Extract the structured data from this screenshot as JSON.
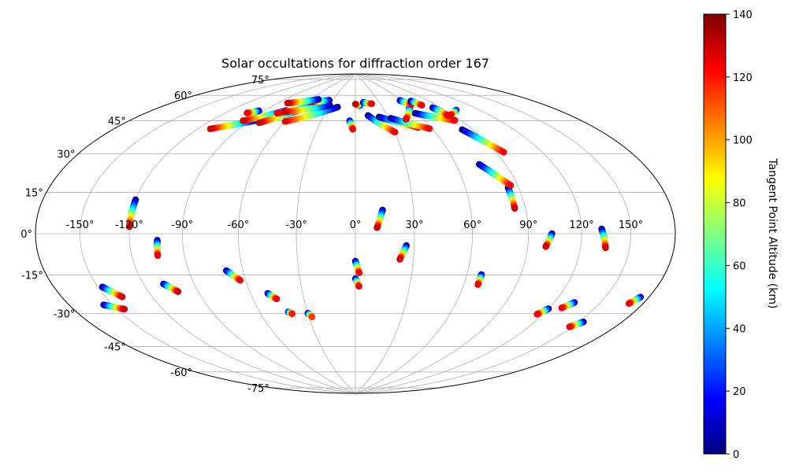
{
  "chart_data": {
    "type": "scatter",
    "projection": "hammer",
    "title": "Solar occultations for diffraction order 167",
    "colorbar": {
      "label": "Tangent Point Altitude (km)",
      "range": [
        0,
        140
      ],
      "ticks": [
        "0",
        "20",
        "40",
        "60",
        "80",
        "100",
        "120",
        "140"
      ],
      "colormap": "jet"
    },
    "lon_tick_labels": [
      "-150°",
      "-120°",
      "-90°",
      "-60°",
      "-30°",
      "0°",
      "30°",
      "60°",
      "90°",
      "120°",
      "150°"
    ],
    "lat_tick_labels": [
      "-75°",
      "-60°",
      "-45°",
      "-30°",
      "-15°",
      "0°",
      "15°",
      "30°",
      "45°",
      "60°",
      "75°"
    ],
    "grid": true,
    "occultations": [
      {
        "start": [
          -120,
          15
        ],
        "end": [
          -120,
          3
        ],
        "alt_start": 0,
        "alt_end": 130
      },
      {
        "start": [
          -104,
          -3
        ],
        "end": [
          -105,
          -10
        ],
        "alt_start": 0,
        "alt_end": 125
      },
      {
        "start": [
          -147,
          -22
        ],
        "end": [
          -139,
          -27
        ],
        "alt_start": 0,
        "alt_end": 130
      },
      {
        "start": [
          -108,
          -23
        ],
        "end": [
          -102,
          -27
        ],
        "alt_start": 0,
        "alt_end": 130
      },
      {
        "start": [
          -156,
          -29
        ],
        "end": [
          -145,
          -32
        ],
        "alt_start": 0,
        "alt_end": 130
      },
      {
        "start": [
          -69,
          -18
        ],
        "end": [
          -63,
          -23
        ],
        "alt_start": 0,
        "alt_end": 125
      },
      {
        "start": [
          -50,
          -30
        ],
        "end": [
          -46,
          -33
        ],
        "alt_start": 0,
        "alt_end": 125
      },
      {
        "start": [
          -42,
          -40
        ],
        "end": [
          -40,
          -41
        ],
        "alt_start": 0,
        "alt_end": 120
      },
      {
        "start": [
          -30,
          -41
        ],
        "end": [
          -28,
          -43
        ],
        "alt_start": 0,
        "alt_end": 115
      },
      {
        "start": [
          0,
          -14
        ],
        "end": [
          2,
          -20
        ],
        "alt_start": 0,
        "alt_end": 125
      },
      {
        "start": [
          0,
          -23
        ],
        "end": [
          2,
          -27
        ],
        "alt_start": 0,
        "alt_end": 125
      },
      {
        "start": [
          14,
          12
        ],
        "end": [
          11,
          3
        ],
        "alt_start": 0,
        "alt_end": 130
      },
      {
        "start": [
          26,
          -6
        ],
        "end": [
          23,
          -13
        ],
        "alt_start": 0,
        "alt_end": 130
      },
      {
        "start": [
          68,
          -20
        ],
        "end": [
          68,
          -25
        ],
        "alt_start": 0,
        "alt_end": 125
      },
      {
        "start": [
          84,
          22
        ],
        "end": [
          84,
          12
        ],
        "alt_start": 0,
        "alt_end": 130
      },
      {
        "start": [
          74,
          34
        ],
        "end": [
          86,
          23
        ],
        "alt_start": 0,
        "alt_end": 125
      },
      {
        "start": [
          82,
          52
        ],
        "end": [
          95,
          39
        ],
        "alt_start": 0,
        "alt_end": 125
      },
      {
        "start": [
          103,
          0
        ],
        "end": [
          100,
          -6
        ],
        "alt_start": 0,
        "alt_end": 130
      },
      {
        "start": [
          132,
          2
        ],
        "end": [
          135,
          -6
        ],
        "alt_start": 0,
        "alt_end": 130
      },
      {
        "start": [
          120,
          -34
        ],
        "end": [
          116,
          -37
        ],
        "alt_start": 0,
        "alt_end": 125
      },
      {
        "start": [
          133,
          -30
        ],
        "end": [
          128,
          -33
        ],
        "alt_start": 0,
        "alt_end": 125
      },
      {
        "start": [
          153,
          -37
        ],
        "end": [
          148,
          -40
        ],
        "alt_start": 0,
        "alt_end": 125
      },
      {
        "start": [
          174,
          -24
        ],
        "end": [
          170,
          -27
        ],
        "alt_start": 0,
        "alt_end": 125
      },
      {
        "start": [
          -5,
          60
        ],
        "end": [
          -2,
          55
        ],
        "alt_start": 0,
        "alt_end": 125
      },
      {
        "start": [
          -85,
          57
        ],
        "end": [
          -111,
          50
        ],
        "alt_start": 0,
        "alt_end": 130
      },
      {
        "start": [
          -70,
          64
        ],
        "end": [
          -95,
          56
        ],
        "alt_start": 0,
        "alt_end": 130
      },
      {
        "start": [
          -55,
          66
        ],
        "end": [
          -80,
          56
        ],
        "alt_start": 0,
        "alt_end": 130
      },
      {
        "start": [
          -20,
          68
        ],
        "end": [
          -60,
          58
        ],
        "alt_start": 0,
        "alt_end": 125
      },
      {
        "start": [
          -45,
          69
        ],
        "end": [
          -75,
          62
        ],
        "alt_start": 0,
        "alt_end": 125
      },
      {
        "start": [
          -30,
          69
        ],
        "end": [
          -70,
          63
        ],
        "alt_start": 0,
        "alt_end": 130
      },
      {
        "start": [
          -35,
          72
        ],
        "end": [
          -55,
          70
        ],
        "alt_start": 0,
        "alt_end": 125
      },
      {
        "start": [
          -50,
          72
        ],
        "end": [
          -80,
          68
        ],
        "alt_start": 0,
        "alt_end": 130
      },
      {
        "start": [
          -95,
          62
        ],
        "end": [
          -102,
          60
        ],
        "alt_start": 0,
        "alt_end": 125
      },
      {
        "start": [
          5,
          69
        ],
        "end": [
          0,
          70
        ],
        "alt_start": 0,
        "alt_end": 130
      },
      {
        "start": [
          10,
          71
        ],
        "end": [
          20,
          70
        ],
        "alt_start": 0,
        "alt_end": 125
      },
      {
        "start": [
          12,
          63
        ],
        "end": [
          30,
          53
        ],
        "alt_start": 0,
        "alt_end": 125
      },
      {
        "start": [
          22,
          62
        ],
        "end": [
          50,
          55
        ],
        "alt_start": 0,
        "alt_end": 125
      },
      {
        "start": [
          32,
          61
        ],
        "end": [
          58,
          54
        ],
        "alt_start": 0,
        "alt_end": 125
      },
      {
        "start": [
          58,
          63
        ],
        "end": [
          85,
          57
        ],
        "alt_start": 0,
        "alt_end": 125
      },
      {
        "start": [
          60,
          67
        ],
        "end": [
          45,
          60
        ],
        "alt_start": 0,
        "alt_end": 125
      },
      {
        "start": [
          58,
          71
        ],
        "end": [
          65,
          68
        ],
        "alt_start": 0,
        "alt_end": 125
      },
      {
        "start": [
          82,
          65
        ],
        "end": [
          85,
          60
        ],
        "alt_start": 0,
        "alt_end": 125
      },
      {
        "start": [
          100,
          62
        ],
        "end": [
          88,
          60
        ],
        "alt_start": 0,
        "alt_end": 125
      },
      {
        "start": [
          70,
          70
        ],
        "end": [
          75,
          67
        ],
        "alt_start": 0,
        "alt_end": 125
      }
    ]
  }
}
